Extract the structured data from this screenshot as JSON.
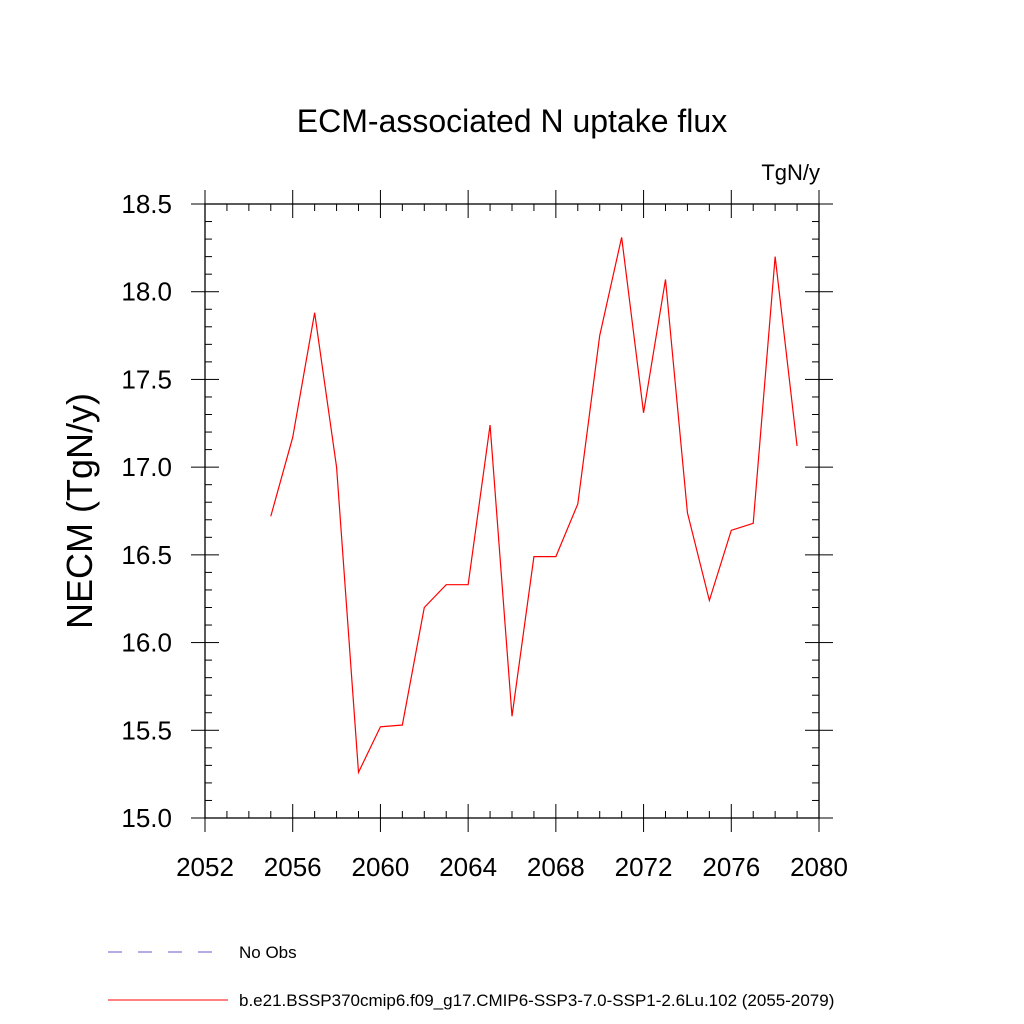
{
  "chart_data": {
    "type": "line",
    "title": "ECM-associated N uptake flux",
    "units_label": "TgN/y",
    "ylabel": "NECM  (TgN/y)",
    "xlabel": "",
    "xlim": [
      2052,
      2080
    ],
    "ylim": [
      15.0,
      18.5
    ],
    "x_ticks": [
      "2052",
      "2056",
      "2060",
      "2064",
      "2068",
      "2072",
      "2076",
      "2080"
    ],
    "y_ticks": [
      "15.0",
      "15.5",
      "16.0",
      "16.5",
      "17.0",
      "17.5",
      "18.0",
      "18.5"
    ],
    "grid": false,
    "legend_position": "bottom-left",
    "series": [
      {
        "name": "b.e21.BSSP370cmip6.f09_g17.CMIP6-SSP3-7.0-SSP1-2.6Lu.102 (2055-2079)",
        "color": "#ff0000",
        "style": "solid",
        "x": [
          2055,
          2056,
          2057,
          2058,
          2059,
          2060,
          2061,
          2062,
          2063,
          2064,
          2065,
          2066,
          2067,
          2068,
          2069,
          2070,
          2071,
          2072,
          2073,
          2074,
          2075,
          2076,
          2077,
          2078,
          2079
        ],
        "values": [
          16.72,
          17.17,
          17.88,
          17.0,
          15.26,
          15.52,
          15.53,
          16.2,
          16.33,
          16.33,
          17.24,
          15.58,
          16.49,
          16.49,
          16.79,
          17.75,
          18.31,
          17.31,
          18.07,
          16.74,
          16.24,
          16.64,
          16.68,
          18.2,
          17.12
        ]
      }
    ],
    "legend": [
      {
        "label": "No Obs",
        "color": "#6a5acd",
        "style": "dashed"
      },
      {
        "label": "b.e21.BSSP370cmip6.f09_g17.CMIP6-SSP3-7.0-SSP1-2.6Lu.102 (2055-2079)",
        "color": "#ff0000",
        "style": "solid"
      }
    ]
  }
}
